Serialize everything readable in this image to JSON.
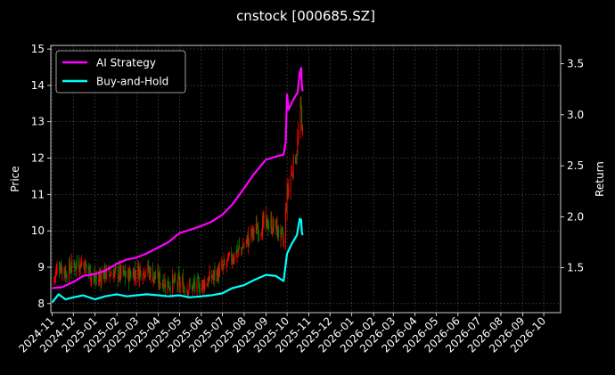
{
  "chart_data": {
    "type": "line",
    "title": "cnstock [000685.SZ]",
    "xlabel": "",
    "ylabel_left": "Price",
    "ylabel_right": "Return",
    "grid": true,
    "legend_position": "top-left",
    "x_tick_labels": [
      "2024-11",
      "2024-12",
      "2025-01",
      "2025-02",
      "2025-03",
      "2025-04",
      "2025-05",
      "2025-06",
      "2025-07",
      "2025-08",
      "2025-09",
      "2025-10",
      "2025-11",
      "2025-12",
      "2026-01",
      "2026-02",
      "2026-03",
      "2026-04",
      "2026-05",
      "2026-06",
      "2026-07",
      "2026-08",
      "2026-09",
      "2026-10"
    ],
    "xlim": [
      "2024-10-30",
      "2026-10-25"
    ],
    "ylim_left": [
      7.75,
      15.1
    ],
    "ylim_right": [
      1.06,
      3.68
    ],
    "y_ticks_left": [
      8,
      9,
      10,
      11,
      12,
      13,
      14,
      15
    ],
    "y_ticks_right": [
      1.5,
      2.0,
      2.5,
      3.0,
      3.5
    ],
    "y_tick_labels_right": [
      "1.5",
      "2.0",
      "2.5",
      "3.0",
      "3.5"
    ],
    "series": [
      {
        "name": "AI Strategy",
        "axis": "right",
        "color": "#ff00ff",
        "points": [
          [
            "2024-11-01",
            1.3
          ],
          [
            "2024-11-15",
            1.31
          ],
          [
            "2024-12-01",
            1.36
          ],
          [
            "2024-12-15",
            1.42
          ],
          [
            "2025-01-01",
            1.44
          ],
          [
            "2025-01-15",
            1.47
          ],
          [
            "2025-02-01",
            1.54
          ],
          [
            "2025-02-15",
            1.58
          ],
          [
            "2025-03-01",
            1.6
          ],
          [
            "2025-03-15",
            1.64
          ],
          [
            "2025-04-01",
            1.7
          ],
          [
            "2025-04-15",
            1.75
          ],
          [
            "2025-05-01",
            1.84
          ],
          [
            "2025-05-15",
            1.87
          ],
          [
            "2025-06-01",
            1.91
          ],
          [
            "2025-06-15",
            1.95
          ],
          [
            "2025-07-01",
            2.02
          ],
          [
            "2025-07-15",
            2.12
          ],
          [
            "2025-08-01",
            2.28
          ],
          [
            "2025-08-15",
            2.42
          ],
          [
            "2025-09-01",
            2.56
          ],
          [
            "2025-09-15",
            2.59
          ],
          [
            "2025-09-26",
            2.61
          ],
          [
            "2025-09-29",
            2.73
          ],
          [
            "2025-10-01",
            3.2
          ],
          [
            "2025-10-03",
            3.05
          ],
          [
            "2025-10-10",
            3.15
          ],
          [
            "2025-10-16",
            3.22
          ],
          [
            "2025-10-19",
            3.41
          ],
          [
            "2025-10-21",
            3.46
          ],
          [
            "2025-10-22",
            3.3
          ],
          [
            "2025-10-23",
            3.23
          ]
        ]
      },
      {
        "name": "Buy-and-Hold",
        "axis": "right",
        "color": "#00ffff",
        "points": [
          [
            "2024-11-01",
            1.16
          ],
          [
            "2024-11-10",
            1.24
          ],
          [
            "2024-11-20",
            1.19
          ],
          [
            "2024-12-01",
            1.21
          ],
          [
            "2024-12-15",
            1.23
          ],
          [
            "2025-01-01",
            1.19
          ],
          [
            "2025-01-15",
            1.22
          ],
          [
            "2025-02-01",
            1.24
          ],
          [
            "2025-02-15",
            1.22
          ],
          [
            "2025-03-01",
            1.23
          ],
          [
            "2025-03-15",
            1.24
          ],
          [
            "2025-04-01",
            1.23
          ],
          [
            "2025-04-15",
            1.22
          ],
          [
            "2025-05-01",
            1.23
          ],
          [
            "2025-05-15",
            1.21
          ],
          [
            "2025-06-01",
            1.22
          ],
          [
            "2025-06-15",
            1.23
          ],
          [
            "2025-07-01",
            1.25
          ],
          [
            "2025-07-15",
            1.3
          ],
          [
            "2025-08-01",
            1.33
          ],
          [
            "2025-08-15",
            1.38
          ],
          [
            "2025-09-01",
            1.43
          ],
          [
            "2025-09-15",
            1.42
          ],
          [
            "2025-09-26",
            1.37
          ],
          [
            "2025-10-01",
            1.64
          ],
          [
            "2025-10-08",
            1.74
          ],
          [
            "2025-10-15",
            1.82
          ],
          [
            "2025-10-19",
            1.98
          ],
          [
            "2025-10-21",
            1.97
          ],
          [
            "2025-10-22",
            1.85
          ],
          [
            "2025-10-23",
            1.82
          ]
        ]
      },
      {
        "name": "Price",
        "axis": "left",
        "colors": {
          "up": "#ff0000",
          "down": "#008000"
        },
        "points": [
          [
            "2024-11-01",
            8.55
          ],
          [
            "2024-11-10",
            9.1
          ],
          [
            "2024-11-20",
            8.85
          ],
          [
            "2024-12-01",
            9.05
          ],
          [
            "2024-12-15",
            9.15
          ],
          [
            "2025-01-01",
            8.65
          ],
          [
            "2025-01-15",
            8.85
          ],
          [
            "2025-02-01",
            8.85
          ],
          [
            "2025-02-15",
            8.75
          ],
          [
            "2025-03-01",
            8.9
          ],
          [
            "2025-03-15",
            8.95
          ],
          [
            "2025-04-01",
            8.65
          ],
          [
            "2025-04-15",
            8.55
          ],
          [
            "2025-05-01",
            8.55
          ],
          [
            "2025-05-15",
            8.45
          ],
          [
            "2025-06-01",
            8.5
          ],
          [
            "2025-06-15",
            8.7
          ],
          [
            "2025-07-01",
            8.95
          ],
          [
            "2025-07-15",
            9.3
          ],
          [
            "2025-08-01",
            9.6
          ],
          [
            "2025-08-15",
            10.0
          ],
          [
            "2025-09-01",
            10.2
          ],
          [
            "2025-09-15",
            10.1
          ],
          [
            "2025-09-26",
            9.7
          ],
          [
            "2025-10-01",
            11.0
          ],
          [
            "2025-10-08",
            11.7
          ],
          [
            "2025-10-15",
            12.2
          ],
          [
            "2025-10-19",
            13.1
          ],
          [
            "2025-10-21",
            13.4
          ],
          [
            "2025-10-22",
            13.0
          ],
          [
            "2025-10-23",
            12.7
          ]
        ]
      }
    ]
  }
}
